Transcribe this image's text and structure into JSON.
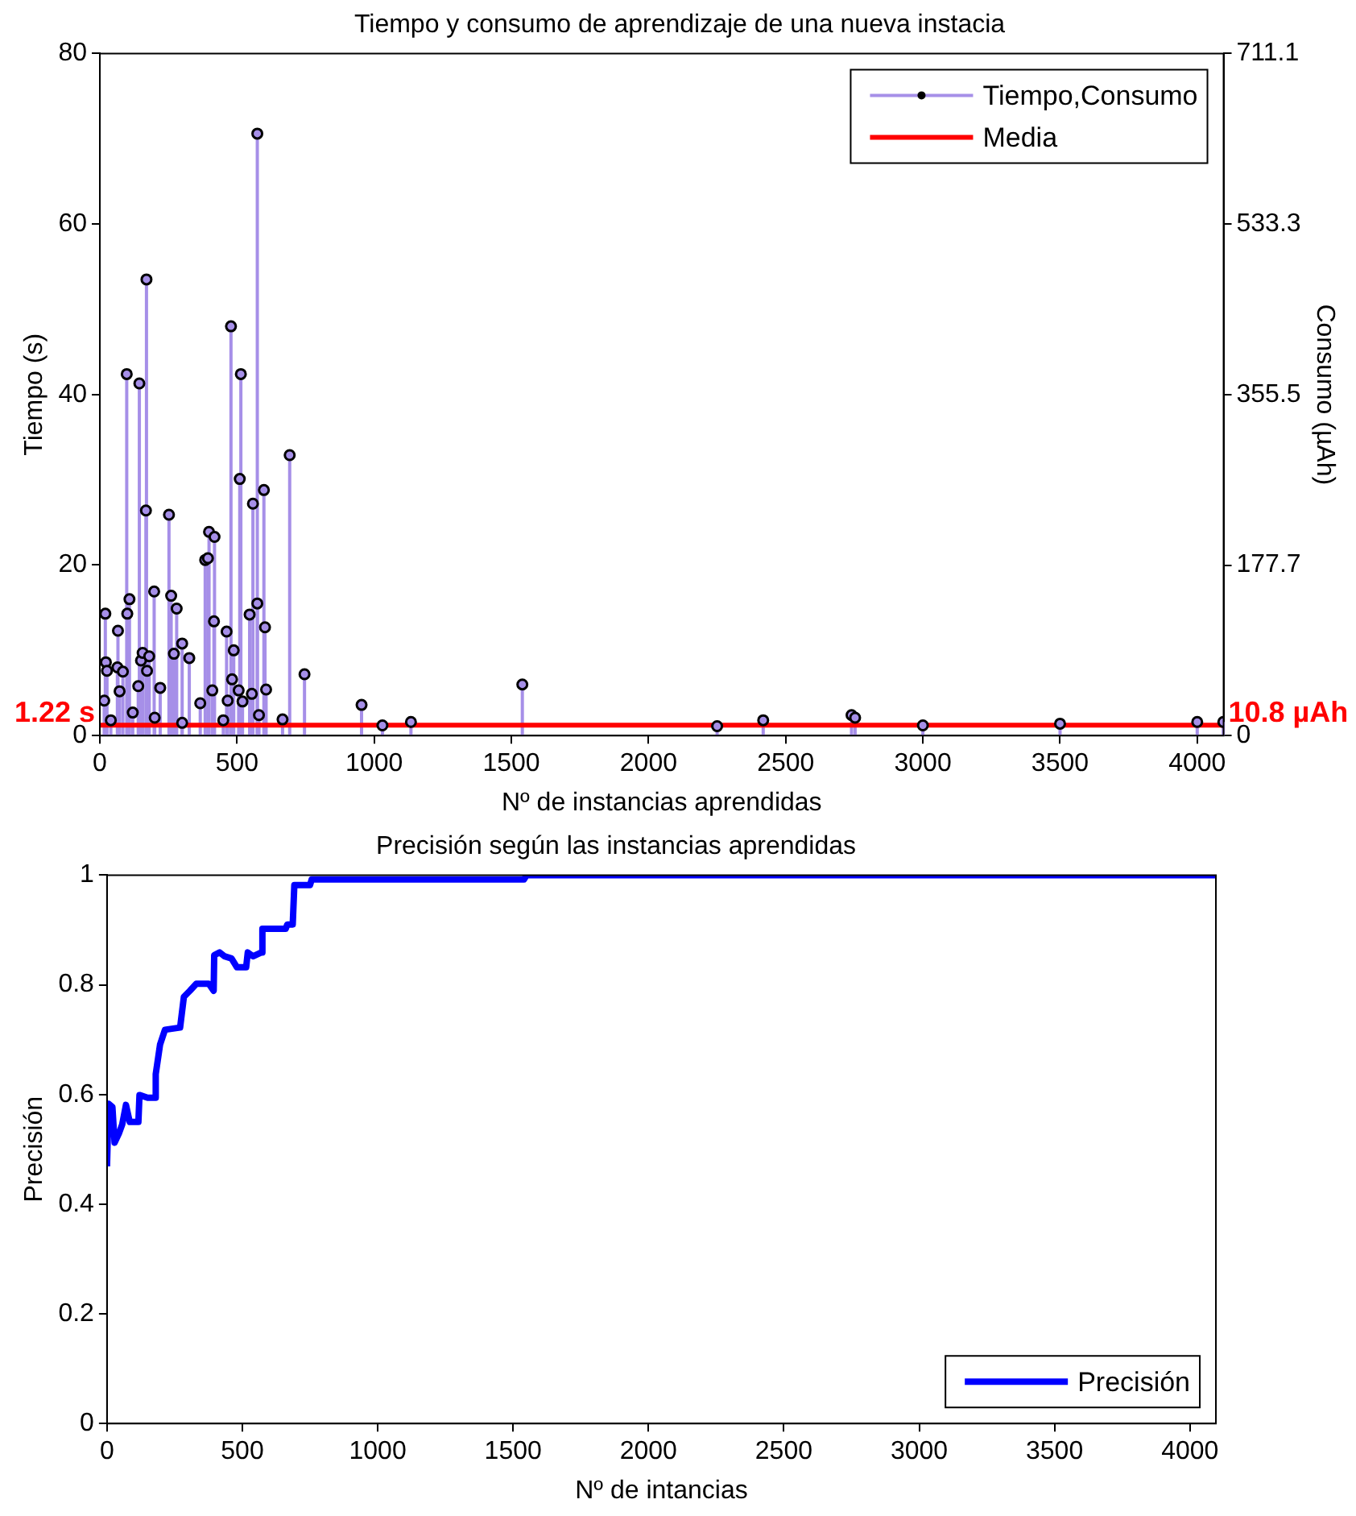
{
  "chart_data": [
    {
      "type": "lollipop",
      "title": "Tiempo y consumo de aprendizaje de una nueva instacia",
      "xlabel": "Nº de instancias aprendidas",
      "ylabel": "Tiempo (s)",
      "y2label": "Consumo (µAh)",
      "xlim": [
        0,
        4096
      ],
      "xticks": [
        0,
        500,
        1000,
        1500,
        2000,
        2500,
        3000,
        3500,
        4000
      ],
      "ylim": [
        0,
        80
      ],
      "yticks": [
        0,
        20,
        40,
        60,
        80
      ],
      "y2lim": [
        0,
        711.1
      ],
      "y2ticks": [
        0,
        177.7,
        355.5,
        533.3,
        711.1
      ],
      "legend": "top right",
      "grid": false,
      "series": [
        {
          "name": "Tiempo,Consumo",
          "color": "#a68fe8",
          "marker": "circle",
          "x": [
            16,
            20,
            22,
            26,
            40,
            64,
            66,
            72,
            84,
            98,
            100,
            108,
            120,
            140,
            144,
            150,
            156,
            168,
            170,
            172,
            180,
            198,
            200,
            220,
            252,
            260,
            270,
            280,
            300,
            300,
            326,
            366,
            384,
            394,
            398,
            410,
            416,
            418,
            450,
            462,
            466,
            478,
            482,
            488,
            506,
            510,
            514,
            520,
            546,
            554,
            558,
            574,
            574,
            580,
            598,
            602,
            606,
            666,
            692,
            746,
            954,
            1030,
            1134,
            1540,
            2250,
            2418,
            2740,
            2753,
            3000,
            3500,
            4000,
            4095
          ],
          "values": [
            4.1,
            14.3,
            8.6,
            7.6,
            1.8,
            8.0,
            12.3,
            5.2,
            7.5,
            42.4,
            14.3,
            16.0,
            2.7,
            5.8,
            41.3,
            8.8,
            9.7,
            26.4,
            53.5,
            7.6,
            9.3,
            16.9,
            2.1,
            5.6,
            25.9,
            16.4,
            9.6,
            14.9,
            10.8,
            1.5,
            9.1,
            3.8,
            20.6,
            20.8,
            23.9,
            5.3,
            13.4,
            23.3,
            1.8,
            12.2,
            4.1,
            48.0,
            6.6,
            10.0,
            5.3,
            30.1,
            42.4,
            4.0,
            14.2,
            4.9,
            27.2,
            70.6,
            15.5,
            2.4,
            28.8,
            12.7,
            5.4,
            1.9,
            32.9,
            7.2,
            3.6,
            1.2,
            1.6,
            6.0,
            1.1,
            1.8,
            2.4,
            2.1,
            1.2,
            1.4,
            1.6,
            1.6
          ]
        },
        {
          "name": "Media",
          "type": "line",
          "color": "#ff0000",
          "x": [
            0,
            4096
          ],
          "values": [
            1.22,
            1.22
          ]
        }
      ],
      "annotations": [
        {
          "text": "1.22 s",
          "x": 0,
          "y": 1.22
        },
        {
          "text": "10.8 µAh",
          "x": 4096,
          "y": 1.22
        }
      ]
    },
    {
      "type": "line",
      "title": "Precisión según las instancias aprendidas",
      "xlabel": "Nº de intancias",
      "ylabel": "Precisión",
      "xlim": [
        0,
        4096
      ],
      "xticks": [
        0,
        500,
        1000,
        1500,
        2000,
        2500,
        3000,
        3500,
        4000
      ],
      "ylim": [
        0,
        1
      ],
      "yticks": [
        0,
        0.2,
        0.4,
        0.6,
        0.8,
        1
      ],
      "legend": "bottom right",
      "grid": false,
      "series": [
        {
          "name": "Precisión",
          "color": "#0000ff",
          "x": [
            0,
            6,
            20,
            28,
            44,
            56,
            70,
            84,
            116,
            120,
            150,
            176,
            180,
            196,
            214,
            270,
            284,
            306,
            330,
            376,
            394,
            396,
            416,
            434,
            460,
            480,
            514,
            520,
            540,
            570,
            574,
            660,
            666,
            686,
            692,
            750,
            756,
            1540,
            1550,
            4096
          ],
          "values": [
            0.469,
            0.583,
            0.577,
            0.512,
            0.529,
            0.545,
            0.581,
            0.55,
            0.55,
            0.599,
            0.594,
            0.594,
            0.637,
            0.691,
            0.718,
            0.722,
            0.778,
            0.789,
            0.802,
            0.802,
            0.789,
            0.854,
            0.859,
            0.852,
            0.848,
            0.832,
            0.832,
            0.859,
            0.852,
            0.859,
            0.902,
            0.902,
            0.91,
            0.91,
            0.982,
            0.982,
            0.992,
            0.992,
            1.0,
            1.0
          ]
        }
      ]
    }
  ]
}
